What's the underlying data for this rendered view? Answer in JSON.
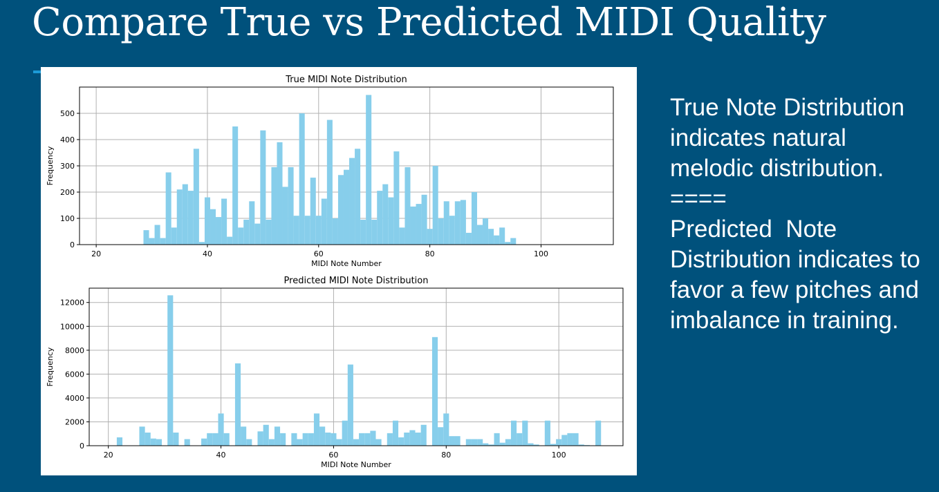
{
  "slide": {
    "title": "Compare True vs Predicted MIDI Quality",
    "side_text": [
      "True Note Distribution indicates natural melodic distribution.",
      "====",
      "Predicted  Note Distribution indicates to favor a few pitches and imbalance in training."
    ]
  },
  "colors": {
    "background": "#00517c",
    "bar": "#87ceeb",
    "accent": "#1d9bd7"
  },
  "chart_data": [
    {
      "type": "bar",
      "title": "True MIDI Note Distribution",
      "xlabel": "MIDI Note Number",
      "ylabel": "Frequency",
      "xlim": [
        17,
        113
      ],
      "ylim": [
        0,
        600
      ],
      "xticks": [
        20,
        40,
        60,
        80,
        100
      ],
      "yticks": [
        0,
        100,
        200,
        300,
        400,
        500
      ],
      "grid": true,
      "x": [
        29,
        30,
        31,
        32,
        33,
        34,
        35,
        36,
        37,
        38,
        39,
        40,
        41,
        42,
        43,
        44,
        45,
        46,
        47,
        48,
        49,
        50,
        51,
        52,
        53,
        54,
        55,
        56,
        57,
        58,
        59,
        60,
        61,
        62,
        63,
        64,
        65,
        66,
        67,
        68,
        69,
        70,
        71,
        72,
        73,
        74,
        75,
        76,
        77,
        78,
        79,
        80,
        81,
        82,
        83,
        84,
        85,
        86,
        87,
        88,
        89,
        90,
        91,
        92,
        93,
        94,
        95
      ],
      "values": [
        55,
        25,
        75,
        25,
        275,
        65,
        210,
        230,
        205,
        365,
        10,
        180,
        135,
        105,
        175,
        30,
        450,
        65,
        95,
        165,
        80,
        435,
        95,
        295,
        390,
        220,
        295,
        110,
        500,
        110,
        255,
        110,
        175,
        475,
        100,
        265,
        285,
        330,
        365,
        95,
        570,
        95,
        205,
        230,
        180,
        355,
        65,
        295,
        145,
        155,
        190,
        60,
        300,
        100,
        165,
        110,
        165,
        170,
        45,
        200,
        75,
        100,
        60,
        35,
        65,
        10,
        25
      ]
    },
    {
      "type": "bar",
      "title": "Predicted MIDI Note Distribution",
      "xlabel": "MIDI Note Number",
      "ylabel": "Frequency",
      "xlim": [
        16.6,
        111.4
      ],
      "ylim": [
        0,
        13200
      ],
      "xticks": [
        20,
        40,
        60,
        80,
        100
      ],
      "yticks": [
        0,
        2000,
        4000,
        6000,
        8000,
        10000,
        12000
      ],
      "grid": true,
      "x": [
        22,
        26,
        27,
        28,
        29,
        31,
        32,
        34,
        37,
        38,
        39,
        40,
        41,
        43,
        44,
        45,
        47,
        48,
        49,
        50,
        51,
        53,
        54,
        55,
        56,
        57,
        58,
        59,
        60,
        61,
        62,
        63,
        64,
        65,
        66,
        67,
        68,
        70,
        71,
        72,
        73,
        74,
        75,
        76,
        78,
        79,
        80,
        81,
        82,
        84,
        85,
        86,
        87,
        88,
        89,
        90,
        91,
        92,
        93,
        94,
        95,
        96,
        98,
        99,
        100,
        101,
        102,
        103,
        104,
        105,
        107
      ],
      "values": [
        700,
        1600,
        1100,
        600,
        550,
        12600,
        1100,
        550,
        600,
        1050,
        1050,
        2700,
        1050,
        6900,
        1600,
        550,
        1200,
        1750,
        550,
        1600,
        1050,
        1050,
        550,
        1050,
        1050,
        2700,
        1600,
        1100,
        1050,
        550,
        2100,
        6800,
        550,
        1050,
        1050,
        1250,
        550,
        1050,
        2100,
        700,
        1100,
        1300,
        1100,
        1750,
        9100,
        1550,
        2700,
        800,
        800,
        550,
        550,
        550,
        200,
        100,
        1050,
        250,
        550,
        2100,
        1050,
        2100,
        200,
        100,
        2100,
        150,
        550,
        900,
        1050,
        1050,
        100,
        50,
        2100
      ]
    }
  ]
}
